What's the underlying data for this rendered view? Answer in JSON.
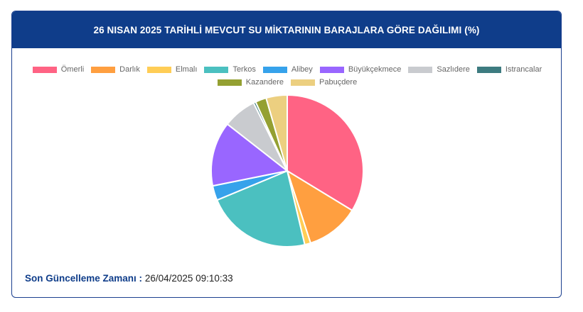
{
  "header": {
    "title": "26 NISAN 2025 TARİHLİ MEVCUT SU MİKTARININ BARAJLARA GÖRE DAĞILIMI (%)"
  },
  "chart_data": {
    "type": "pie",
    "title": "26 NISAN 2025 TARİHLİ MEVCUT SU MİKTARININ BARAJLARA GÖRE DAĞILIMI (%)",
    "legend_position": "top",
    "categories": [
      "Ömerli",
      "Darlık",
      "Elmalı",
      "Terkos",
      "Alibey",
      "Büyükçekmece",
      "Sazlıdere",
      "Istrancalar",
      "Kazandere",
      "Pabuçdere"
    ],
    "values": [
      34.6,
      11.6,
      1.3,
      23.0,
      3.2,
      14.1,
      7.3,
      0.5,
      2.4,
      4.6
    ],
    "colors": [
      "#ff6384",
      "#ff9f40",
      "#ffcd56",
      "#4bc0c0",
      "#36a2eb",
      "#9966ff",
      "#c9cbcf",
      "#3d7b80",
      "#94a032",
      "#eccf80"
    ]
  },
  "footer": {
    "label": "Son Güncelleme Zamanı :",
    "value": "26/04/2025 09:10:33"
  }
}
